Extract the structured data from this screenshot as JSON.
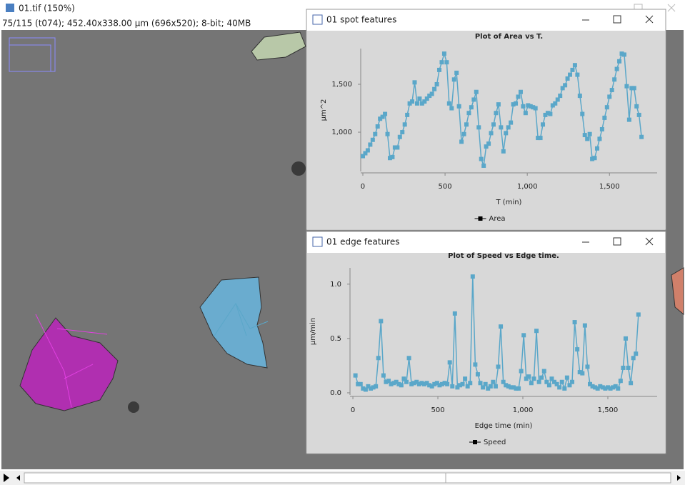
{
  "window": {
    "title": "01.tif (150%)",
    "status": "75/115 (t074); 452.40x338.00 µm (696x520); 8-bit; 40MB"
  },
  "plots": [
    {
      "window_title": "01 spot features",
      "chart_data": {
        "type": "line",
        "title": "Plot of Area vs T.",
        "x_label": "T (min)",
        "y_label": "µm^2",
        "x": [
          0,
          15,
          30,
          45,
          60,
          75,
          90,
          105,
          120,
          135,
          150,
          165,
          180,
          195,
          210,
          225,
          240,
          255,
          270,
          285,
          300,
          315,
          330,
          345,
          360,
          375,
          390,
          405,
          420,
          435,
          450,
          465,
          480,
          495,
          510,
          525,
          540,
          555,
          570,
          585,
          600,
          615,
          630,
          645,
          660,
          675,
          690,
          705,
          720,
          735,
          750,
          765,
          780,
          795,
          810,
          825,
          840,
          855,
          870,
          885,
          900,
          915,
          930,
          945,
          960,
          975,
          990,
          1005,
          1020,
          1035,
          1050,
          1065,
          1080,
          1095,
          1110,
          1125,
          1140,
          1155,
          1170,
          1185,
          1200,
          1215,
          1230,
          1245,
          1260,
          1275,
          1290,
          1305,
          1320,
          1335,
          1350,
          1365,
          1380,
          1395,
          1410,
          1425,
          1440,
          1455,
          1470,
          1485,
          1500,
          1515,
          1530,
          1545,
          1560,
          1575,
          1590,
          1605,
          1620,
          1635,
          1650,
          1665,
          1680,
          1695
        ],
        "series": [
          {
            "name": "Area",
            "color": "#5aa7c9",
            "values": [
              750,
              780,
              810,
              870,
              920,
              980,
              1060,
              1140,
              1160,
              1190,
              980,
              730,
              740,
              840,
              840,
              950,
              1000,
              1080,
              1180,
              1300,
              1320,
              1520,
              1300,
              1350,
              1300,
              1320,
              1350,
              1380,
              1400,
              1450,
              1500,
              1650,
              1730,
              1820,
              1730,
              1300,
              1250,
              1550,
              1620,
              1270,
              900,
              980,
              1080,
              1200,
              1260,
              1340,
              1420,
              1050,
              720,
              650,
              850,
              880,
              990,
              1080,
              1200,
              1290,
              1050,
              800,
              990,
              1050,
              1100,
              1290,
              1300,
              1370,
              1420,
              1270,
              1200,
              1280,
              1270,
              1260,
              1250,
              940,
              940,
              1080,
              1180,
              1200,
              1190,
              1280,
              1300,
              1340,
              1380,
              1460,
              1490,
              1560,
              1600,
              1650,
              1700,
              1600,
              1380,
              1190,
              970,
              930,
              980,
              720,
              730,
              830,
              930,
              1030,
              1150,
              1260,
              1370,
              1440,
              1550,
              1660,
              1740,
              1820,
              1810,
              1480,
              1130,
              1460,
              1460,
              1270,
              1180,
              950
            ]
          }
        ],
        "xlim": [
          -13,
          1790
        ],
        "ylim": [
          590,
          1873
        ],
        "xticks": [
          0,
          500,
          {
            "value": 1000,
            "label": "1,000"
          },
          {
            "value": 1500,
            "label": "1,500"
          }
        ],
        "yticks": [
          {
            "value": 1000,
            "label": "1,000"
          },
          {
            "value": 1500,
            "label": "1,500"
          }
        ],
        "legend": "bottom"
      }
    },
    {
      "window_title": "01 edge features",
      "chart_data": {
        "type": "line",
        "title": "Plot of Speed vs Edge time.",
        "x_label": "Edge time (min)",
        "y_label": "µm/min",
        "x": [
          15,
          30,
          45,
          60,
          75,
          90,
          105,
          120,
          135,
          150,
          165,
          180,
          195,
          210,
          225,
          240,
          255,
          270,
          285,
          300,
          315,
          330,
          345,
          360,
          375,
          390,
          405,
          420,
          435,
          450,
          465,
          480,
          495,
          510,
          525,
          540,
          555,
          570,
          585,
          600,
          615,
          630,
          645,
          660,
          675,
          690,
          705,
          720,
          735,
          750,
          765,
          780,
          795,
          810,
          825,
          840,
          855,
          870,
          885,
          900,
          915,
          930,
          945,
          960,
          975,
          990,
          1005,
          1020,
          1035,
          1050,
          1065,
          1080,
          1095,
          1110,
          1125,
          1140,
          1155,
          1170,
          1185,
          1200,
          1215,
          1230,
          1245,
          1260,
          1275,
          1290,
          1305,
          1320,
          1335,
          1350,
          1365,
          1380,
          1395,
          1410,
          1425,
          1440,
          1455,
          1470,
          1485,
          1500,
          1515,
          1530,
          1545,
          1560,
          1575,
          1590,
          1605,
          1620,
          1635,
          1650,
          1665,
          1680
        ],
        "series": [
          {
            "name": "Speed",
            "color": "#5aa7c9",
            "values": [
              0.16,
              0.08,
              0.08,
              0.04,
              0.03,
              0.06,
              0.04,
              0.05,
              0.06,
              0.32,
              0.66,
              0.16,
              0.1,
              0.11,
              0.08,
              0.09,
              0.1,
              0.08,
              0.07,
              0.13,
              0.1,
              0.32,
              0.08,
              0.09,
              0.1,
              0.08,
              0.09,
              0.08,
              0.09,
              0.07,
              0.06,
              0.08,
              0.09,
              0.07,
              0.08,
              0.09,
              0.08,
              0.28,
              0.06,
              0.73,
              0.05,
              0.07,
              0.08,
              0.13,
              0.06,
              0.09,
              1.07,
              0.26,
              0.17,
              0.09,
              0.05,
              0.08,
              0.04,
              0.06,
              0.1,
              0.06,
              0.24,
              0.61,
              0.1,
              0.07,
              0.06,
              0.05,
              0.05,
              0.04,
              0.04,
              0.2,
              0.53,
              0.13,
              0.15,
              0.09,
              0.13,
              0.57,
              0.1,
              0.14,
              0.2,
              0.1,
              0.07,
              0.13,
              0.1,
              0.08,
              0.05,
              0.1,
              0.04,
              0.14,
              0.07,
              0.1,
              0.65,
              0.4,
              0.19,
              0.18,
              0.62,
              0.24,
              0.08,
              0.06,
              0.05,
              0.04,
              0.06,
              0.05,
              0.04,
              0.05,
              0.04,
              0.05,
              0.06,
              0.04,
              0.11,
              0.23,
              0.5,
              0.23,
              0.09,
              0.32,
              0.36,
              0.72
            ]
          }
        ],
        "xlim": [
          -17,
          1790
        ],
        "ylim": [
          -0.02,
          1.15
        ],
        "xticks": [
          0,
          500,
          {
            "value": 1000,
            "label": "1,000"
          },
          {
            "value": 1500,
            "label": "1,500"
          }
        ],
        "yticks": [
          {
            "value": 0,
            "label": "0.0"
          },
          {
            "value": 0.5,
            "label": "0.5"
          },
          {
            "value": 1,
            "label": "1.0"
          }
        ],
        "legend": "bottom"
      }
    }
  ]
}
